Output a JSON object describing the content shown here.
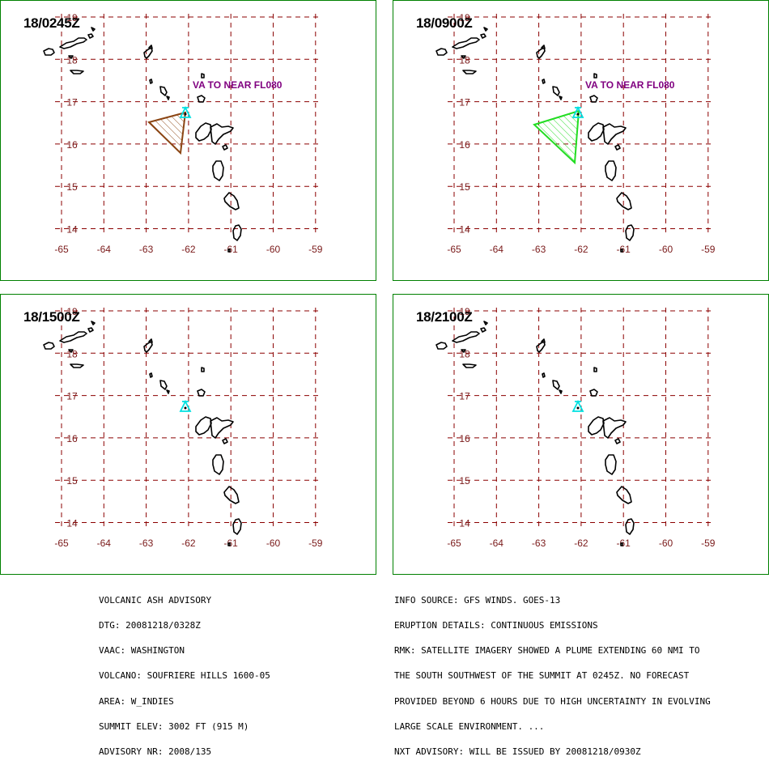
{
  "panels": [
    {
      "id": "p1",
      "title": "18/0245Z",
      "annotation": "VA TO NEAR FL080",
      "ash": "brown"
    },
    {
      "id": "p2",
      "title": "18/0900Z",
      "annotation": "VA TO NEAR FL080",
      "ash": "green"
    },
    {
      "id": "p3",
      "title": "18/1500Z",
      "annotation": "",
      "ash": "none"
    },
    {
      "id": "p4",
      "title": "18/2100Z",
      "annotation": "",
      "ash": "none"
    }
  ],
  "grid": {
    "lon_labels": [
      "-65",
      "-64",
      "-63",
      "-62",
      "-61",
      "-60",
      "-59"
    ],
    "lat_labels": [
      "19",
      "18",
      "17",
      "16",
      "15",
      "14"
    ]
  },
  "colors": {
    "grid": "#8b0000",
    "frame": "#008000",
    "annotation": "#800080",
    "volcano": "#00e0e0",
    "ash_brown": "#8b4513",
    "ash_green": "#22dd22"
  },
  "advisory_left": [
    "VOLCANIC ASH ADVISORY",
    "DTG: 20081218/0328Z",
    "VAAC: WASHINGTON",
    "VOLCANO: SOUFRIERE HILLS 1600-05",
    "AREA: W_INDIES",
    "SUMMIT ELEV: 3002 FT (915 M)",
    "ADVISORY NR: 2008/135"
  ],
  "advisory_right": [
    "INFO SOURCE: GFS WINDS. GOES-13",
    "ERUPTION DETAILS: CONTINUOUS EMISSIONS",
    "RMK: SATELLITE IMAGERY SHOWED A PLUME EXTENDING 60 NMI TO",
    "THE SOUTH SOUTHWEST OF THE SUMMIT AT 0245Z. NO FORECAST",
    "PROVIDED BEYOND 6 HOURS DUE TO HIGH UNCERTAINTY IN EVOLVING",
    "LARGE SCALE ENVIRONMENT. ...",
    "NXT ADVISORY: WILL BE ISSUED BY 20081218/0930Z"
  ]
}
